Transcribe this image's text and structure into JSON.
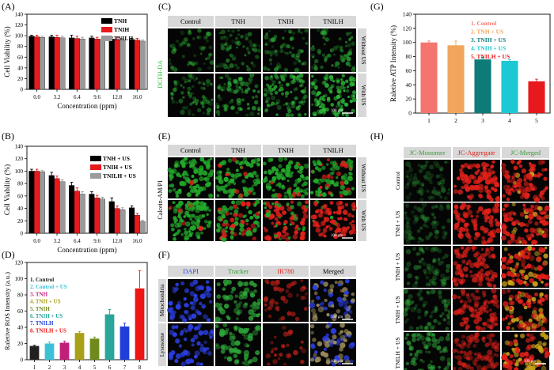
{
  "panel_labels": {
    "A": "(A)",
    "B": "(B)",
    "C": "(C)",
    "D": "(D)",
    "E": "(E)",
    "F": "(F)",
    "G": "(G)",
    "H": "(H)"
  },
  "colors": {
    "black": "#000000",
    "red": "#e8191c",
    "gray": "#9a9a9a",
    "d": [
      "#202020",
      "#3cc2d6",
      "#c21f78",
      "#a8a016",
      "#6f8a1c",
      "#2aa59a",
      "#1f3fd8",
      "#ee1515"
    ],
    "g": [
      "#f4756d",
      "#f2a55c",
      "#0d7b78",
      "#1cc8d3",
      "#e8191c"
    ],
    "fluor_green": "#2fbe3a",
    "fluor_red": "#e0201a",
    "fluor_blue": "#2b3ee0",
    "header_bg": "#d8d8d8"
  },
  "chart_data": [
    {
      "id": "A",
      "type": "bar",
      "categories": [
        "0.0",
        "3.2",
        "6.4",
        "9.6",
        "12.8",
        "16.0"
      ],
      "series": [
        {
          "name": "TNH",
          "values": [
            99,
            98,
            96,
            96,
            94,
            93
          ],
          "errors": [
            2,
            3,
            5,
            3,
            3,
            2
          ]
        },
        {
          "name": "TNIH",
          "values": [
            98,
            97,
            95,
            94,
            93,
            92
          ],
          "errors": [
            3,
            4,
            4,
            3,
            4,
            3
          ]
        },
        {
          "name": "TNILH",
          "values": [
            97,
            96,
            94,
            93,
            92,
            90
          ],
          "errors": [
            2,
            3,
            3,
            2,
            3,
            2
          ]
        }
      ],
      "xlabel": "Concentration (ppm)",
      "ylabel": "Cell Viability (%)",
      "ylim": [
        0,
        140
      ],
      "yticks": [
        0,
        20,
        40,
        60,
        80,
        100,
        120,
        140
      ],
      "legend": "top-right"
    },
    {
      "id": "B",
      "type": "bar",
      "categories": [
        "0.0",
        "3.2",
        "6.4",
        "9.6",
        "12.8",
        "16.0"
      ],
      "series": [
        {
          "name": "TNH + US",
          "values": [
            100,
            93,
            77,
            63,
            51,
            41
          ],
          "errors": [
            3,
            5,
            5,
            4,
            6,
            3
          ]
        },
        {
          "name": "TNIH + US",
          "values": [
            100,
            88,
            68,
            57,
            40,
            29
          ],
          "errors": [
            3,
            4,
            5,
            4,
            4,
            3
          ]
        },
        {
          "name": "TNILH + US",
          "values": [
            99,
            83,
            63,
            55,
            38,
            19
          ],
          "errors": [
            2,
            3,
            4,
            3,
            3,
            2
          ]
        }
      ],
      "xlabel": "Concentration (ppm)",
      "ylabel": "Cell Viability (%)",
      "ylim": [
        0,
        140
      ],
      "yticks": [
        0,
        20,
        40,
        60,
        80,
        100,
        120,
        140
      ],
      "legend": "top-right"
    },
    {
      "id": "D",
      "type": "bar",
      "categories": [
        "1",
        "2",
        "3",
        "4",
        "5",
        "6",
        "7",
        "8"
      ],
      "values": [
        17,
        20,
        21,
        33,
        26,
        56,
        41,
        88
      ],
      "errors": [
        1,
        2,
        2,
        2,
        2,
        6,
        4,
        22
      ],
      "legend_entries": [
        "1. Control",
        "2. Control + US",
        "3. TNH",
        "4. TNH + US",
        "5. TNIH",
        "6. TNIH + US",
        "7. TNILH",
        "8. TNILH + US"
      ],
      "ylabel": "Raletive ROS Intensity (a.u.)",
      "ylim": [
        0,
        120
      ],
      "yticks": [
        0,
        20,
        40,
        60,
        80,
        100,
        120
      ],
      "legend": "top-left"
    },
    {
      "id": "G",
      "type": "bar",
      "categories": [
        "1",
        "2",
        "3",
        "4",
        "5"
      ],
      "values": [
        100,
        96,
        76,
        74,
        45
      ],
      "errors": [
        2,
        6,
        3,
        2,
        3
      ],
      "legend_entries": [
        "1. Control",
        "2. TNH + US",
        "3. TNIH + US",
        "4. TNIH + US",
        "5. TNILH + US"
      ],
      "ylabel": "Raletive ATP Intensity (%)",
      "ylim": [
        0,
        140
      ],
      "yticks": [
        0,
        20,
        40,
        60,
        80,
        100,
        120,
        140
      ],
      "legend": "top-right"
    }
  ],
  "panel_c": {
    "columns": [
      "Control",
      "TNH",
      "TNIH",
      "TNILH"
    ],
    "rows": [
      "Without US",
      "With US"
    ],
    "side_label": "DCFH-DA",
    "scale": "100 μm",
    "intensity": [
      [
        0.18,
        0.22,
        0.28,
        0.32
      ],
      [
        0.3,
        0.45,
        0.6,
        0.85
      ]
    ]
  },
  "panel_e": {
    "columns": [
      "Control",
      "TNH",
      "TNIH",
      "TNILH"
    ],
    "rows": [
      "Without US",
      "With US"
    ],
    "side_label": "Calcein-AM/PI",
    "scale": "100 μm",
    "red_fraction": [
      [
        0.02,
        0.06,
        0.1,
        0.28
      ],
      [
        0.08,
        0.3,
        0.65,
        0.92
      ]
    ]
  },
  "panel_f": {
    "columns": [
      "DAPI",
      "Tracker",
      "IR780",
      "Merged"
    ],
    "rows": [
      "Mitochondria",
      "Lysosome"
    ],
    "scale": "100 μm"
  },
  "panel_h": {
    "columns": [
      "JC-Monomer",
      "JC-Aggregate",
      "JC-Merged"
    ],
    "rows": [
      "Control",
      "TNH + US",
      "TNIH + US",
      "TNIH + US",
      "TNILH + US"
    ],
    "scale": "100 μm",
    "monomer": [
      0.1,
      0.14,
      0.22,
      0.35,
      0.55
    ],
    "aggregate": [
      0.95,
      0.85,
      0.7,
      0.55,
      0.35
    ]
  }
}
